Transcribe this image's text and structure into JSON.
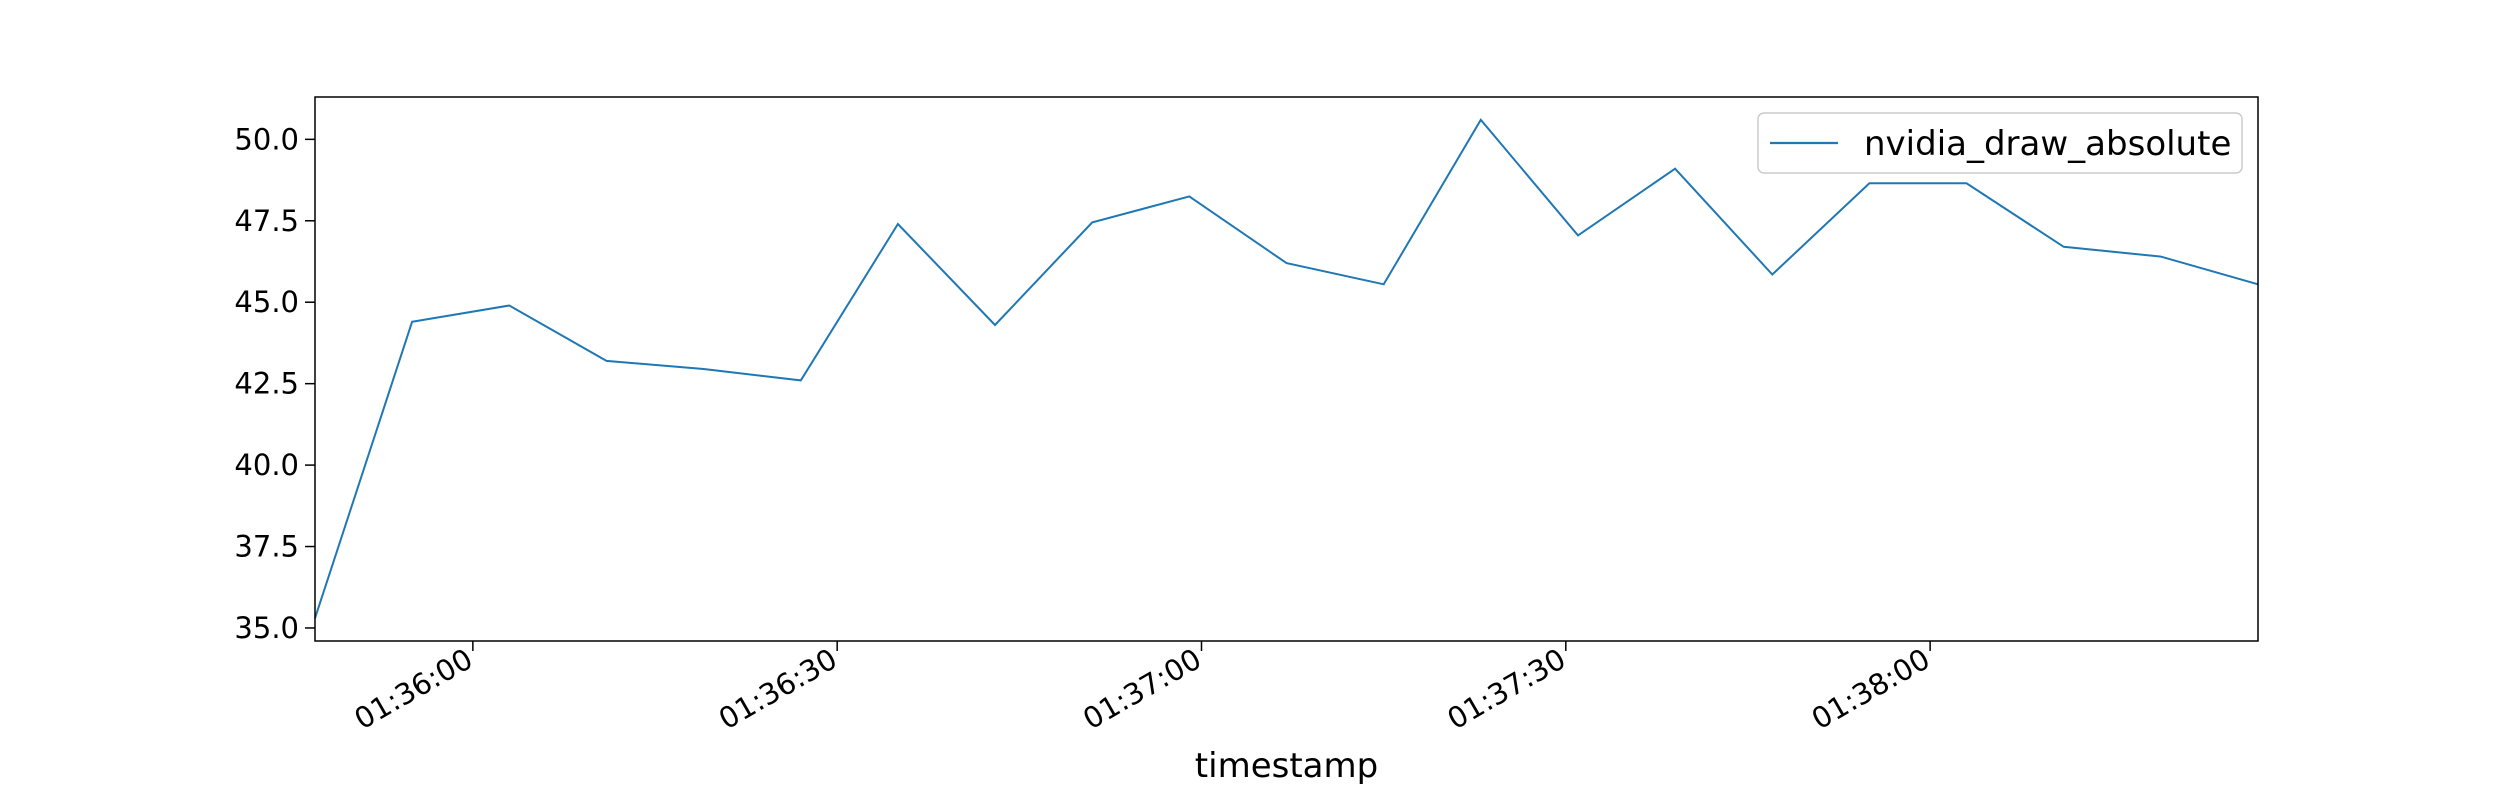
{
  "chart_data": {
    "type": "line",
    "title": "",
    "xlabel": "timestamp",
    "ylabel": "",
    "xlim": [
      "01:35:47",
      "01:38:27"
    ],
    "ylim": [
      34.6,
      51.3
    ],
    "x_ticks": [
      {
        "t": "01:36:00",
        "label": "01:36:00"
      },
      {
        "t": "01:36:30",
        "label": "01:36:30"
      },
      {
        "t": "01:37:00",
        "label": "01:37:00"
      },
      {
        "t": "01:37:30",
        "label": "01:37:30"
      },
      {
        "t": "01:38:00",
        "label": "01:38:00"
      }
    ],
    "y_ticks": [
      "35.0",
      "37.5",
      "40.0",
      "42.5",
      "45.0",
      "47.5",
      "50.0"
    ],
    "grid": false,
    "legend_position": "top-right",
    "series": [
      {
        "name": "nvidia_draw_absolute",
        "color": "#1f77b4",
        "points": [
          {
            "x": "01:35:47",
            "y": 35.3
          },
          {
            "x": "01:35:55",
            "y": 44.4
          },
          {
            "x": "01:36:03",
            "y": 44.9
          },
          {
            "x": "01:36:11",
            "y": 43.2
          },
          {
            "x": "01:36:19",
            "y": 42.95
          },
          {
            "x": "01:36:27",
            "y": 42.6
          },
          {
            "x": "01:36:35",
            "y": 47.4
          },
          {
            "x": "01:36:43",
            "y": 44.3
          },
          {
            "x": "01:36:51",
            "y": 47.45
          },
          {
            "x": "01:36:59",
            "y": 48.25
          },
          {
            "x": "01:37:07",
            "y": 46.2
          },
          {
            "x": "01:37:15",
            "y": 45.55
          },
          {
            "x": "01:37:23",
            "y": 50.6
          },
          {
            "x": "01:37:31",
            "y": 47.05
          },
          {
            "x": "01:37:39",
            "y": 49.1
          },
          {
            "x": "01:37:47",
            "y": 45.85
          },
          {
            "x": "01:37:55",
            "y": 48.65
          },
          {
            "x": "01:38:03",
            "y": 48.65
          },
          {
            "x": "01:38:11",
            "y": 46.7
          },
          {
            "x": "01:38:19",
            "y": 46.4
          },
          {
            "x": "01:38:27",
            "y": 45.55
          }
        ]
      }
    ]
  }
}
